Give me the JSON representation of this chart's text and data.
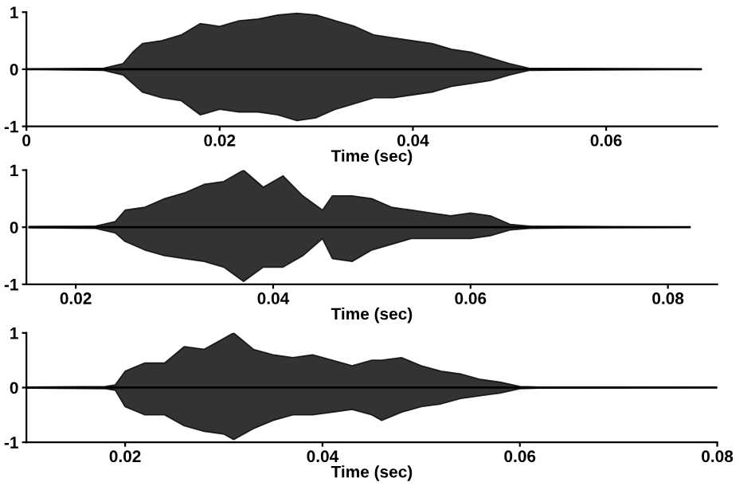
{
  "chart_data": [
    {
      "type": "line",
      "xlabel": "Time (sec)",
      "xlim": [
        0,
        0.0715
      ],
      "xticks": [
        0,
        0.02,
        0.04,
        0.06
      ],
      "ylim": [
        -1,
        1
      ],
      "yticks": [
        -1,
        0,
        1
      ],
      "grid": false,
      "legend": false,
      "series": [
        {
          "color": "#000000",
          "x": [
            0,
            0.008,
            0.01,
            0.011,
            0.012,
            0.014,
            0.016,
            0.018,
            0.02,
            0.022,
            0.024,
            0.026,
            0.028,
            0.03,
            0.032,
            0.034,
            0.036,
            0.038,
            0.04,
            0.042,
            0.044,
            0.046,
            0.048,
            0.05,
            0.052,
            0.0698
          ],
          "values": [
            0,
            0,
            0,
            0,
            0,
            0,
            0,
            0,
            0,
            0,
            0,
            0,
            0,
            0,
            0,
            0,
            0,
            0,
            0,
            0,
            0,
            0,
            0,
            0,
            0,
            0
          ],
          "upper": [
            0,
            0.02,
            0.1,
            0.3,
            0.45,
            0.5,
            0.6,
            0.8,
            0.75,
            0.85,
            0.88,
            0.95,
            0.98,
            0.95,
            0.85,
            0.75,
            0.6,
            0.55,
            0.5,
            0.45,
            0.35,
            0.3,
            0.2,
            0.1,
            0.02,
            0
          ],
          "lower": [
            0,
            -0.02,
            -0.1,
            -0.25,
            -0.4,
            -0.5,
            -0.55,
            -0.8,
            -0.7,
            -0.75,
            -0.75,
            -0.8,
            -0.9,
            -0.85,
            -0.7,
            -0.6,
            -0.5,
            -0.5,
            -0.45,
            -0.4,
            -0.3,
            -0.25,
            -0.2,
            -0.1,
            -0.02,
            0
          ]
        }
      ]
    },
    {
      "type": "line",
      "xlabel": "Time (sec)",
      "xlim": [
        0.015,
        0.085
      ],
      "xticks": [
        0.02,
        0.04,
        0.06,
        0.08
      ],
      "ylim": [
        -1,
        1
      ],
      "yticks": [
        -1,
        0,
        1
      ],
      "grid": false,
      "legend": false,
      "series": [
        {
          "color": "#000000",
          "x": [
            0.0153,
            0.022,
            0.024,
            0.025,
            0.027,
            0.029,
            0.031,
            0.033,
            0.035,
            0.037,
            0.039,
            0.041,
            0.043,
            0.045,
            0.046,
            0.048,
            0.05,
            0.052,
            0.054,
            0.056,
            0.058,
            0.06,
            0.062,
            0.064,
            0.066,
            0.072,
            0.0822
          ],
          "values": [
            0,
            0,
            0,
            0,
            0,
            0,
            0,
            0,
            0,
            0,
            0,
            0,
            0,
            0,
            0,
            0,
            0,
            0,
            0,
            0,
            0,
            0,
            0,
            0,
            0,
            0,
            0
          ],
          "upper": [
            0.01,
            0.02,
            0.1,
            0.3,
            0.35,
            0.5,
            0.6,
            0.75,
            0.8,
            1.0,
            0.7,
            0.9,
            0.55,
            0.3,
            0.55,
            0.55,
            0.5,
            0.35,
            0.3,
            0.25,
            0.2,
            0.25,
            0.2,
            0.05,
            0.02,
            0.01,
            0
          ],
          "lower": [
            -0.01,
            -0.02,
            -0.1,
            -0.25,
            -0.4,
            -0.5,
            -0.55,
            -0.6,
            -0.7,
            -0.95,
            -0.7,
            -0.7,
            -0.5,
            -0.2,
            -0.55,
            -0.6,
            -0.4,
            -0.3,
            -0.2,
            -0.2,
            -0.2,
            -0.2,
            -0.15,
            -0.05,
            -0.02,
            -0.01,
            0
          ]
        }
      ]
    },
    {
      "type": "line",
      "xlabel": "Time (sec)",
      "xlim": [
        0.01,
        0.08
      ],
      "xticks": [
        0.02,
        0.04,
        0.06,
        0.08
      ],
      "ylim": [
        -1,
        1
      ],
      "yticks": [
        -1,
        0,
        1
      ],
      "grid": false,
      "legend": false,
      "series": [
        {
          "color": "#000000",
          "x": [
            0.0101,
            0.018,
            0.019,
            0.02,
            0.022,
            0.024,
            0.026,
            0.028,
            0.03,
            0.031,
            0.033,
            0.035,
            0.037,
            0.039,
            0.041,
            0.043,
            0.045,
            0.046,
            0.048,
            0.05,
            0.052,
            0.054,
            0.056,
            0.058,
            0.06,
            0.062,
            0.08
          ],
          "values": [
            0,
            0,
            0,
            0,
            0,
            0,
            0,
            0,
            0,
            0,
            0,
            0,
            0,
            0,
            0,
            0,
            0,
            0,
            0,
            0,
            0,
            0,
            0,
            0,
            0,
            0,
            0
          ],
          "upper": [
            0.01,
            0.02,
            0.05,
            0.3,
            0.45,
            0.45,
            0.75,
            0.7,
            0.9,
            1.0,
            0.7,
            0.6,
            0.55,
            0.6,
            0.5,
            0.4,
            0.5,
            0.5,
            0.55,
            0.4,
            0.3,
            0.25,
            0.15,
            0.1,
            0.02,
            0.01,
            0
          ],
          "lower": [
            -0.01,
            -0.02,
            -0.05,
            -0.35,
            -0.5,
            -0.5,
            -0.7,
            -0.8,
            -0.85,
            -0.95,
            -0.75,
            -0.6,
            -0.5,
            -0.5,
            -0.45,
            -0.4,
            -0.5,
            -0.6,
            -0.45,
            -0.35,
            -0.3,
            -0.2,
            -0.15,
            -0.1,
            -0.02,
            -0.01,
            0
          ]
        }
      ]
    }
  ]
}
